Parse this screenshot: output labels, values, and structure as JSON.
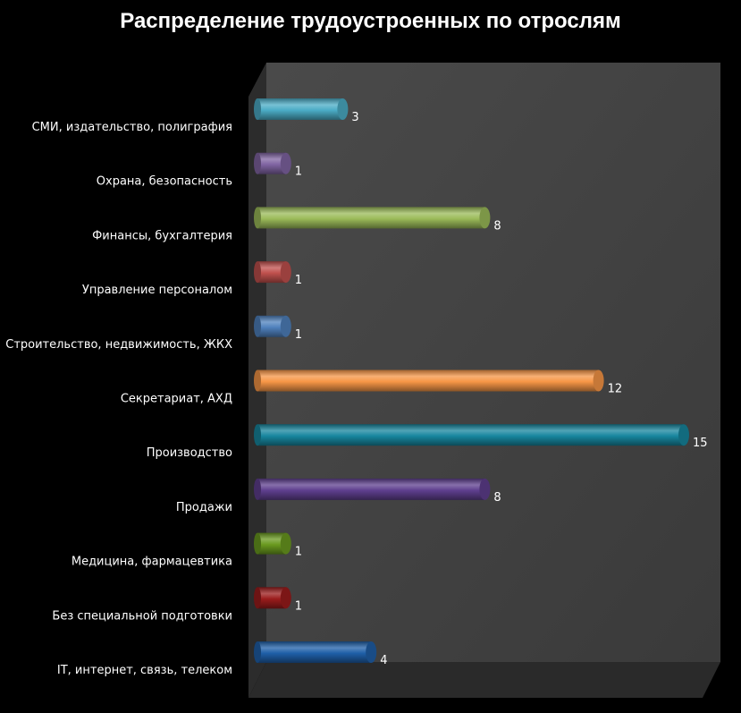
{
  "chart_data": {
    "type": "bar",
    "orientation": "horizontal",
    "title": "Распределение трудоустроенных по отрослям",
    "categories": [
      "СМИ, издательство, полиграфия",
      "Охрана, безопасность",
      "Финансы, бухгалтерия",
      "Управление персоналом",
      "Строительство, недвижимость, ЖКХ",
      "Секретариат, АХД",
      "Производство",
      "Продажи",
      "Медицина, фармацевтика",
      "Без специальной подготовки",
      "IT, интернет, связь, телеком"
    ],
    "values": [
      3,
      1,
      8,
      1,
      1,
      12,
      15,
      8,
      1,
      1,
      4
    ],
    "colors": [
      "#4bacc6",
      "#8064a2",
      "#9bbb59",
      "#c0504d",
      "#4f81bd",
      "#f79646",
      "#17869e",
      "#5f3f8f",
      "#6a9a1f",
      "#9b1c1c",
      "#1f5fa8"
    ],
    "xlim": [
      0,
      16
    ],
    "legend": "none",
    "grid": false,
    "style": "3d cylinder bars on dark background"
  }
}
